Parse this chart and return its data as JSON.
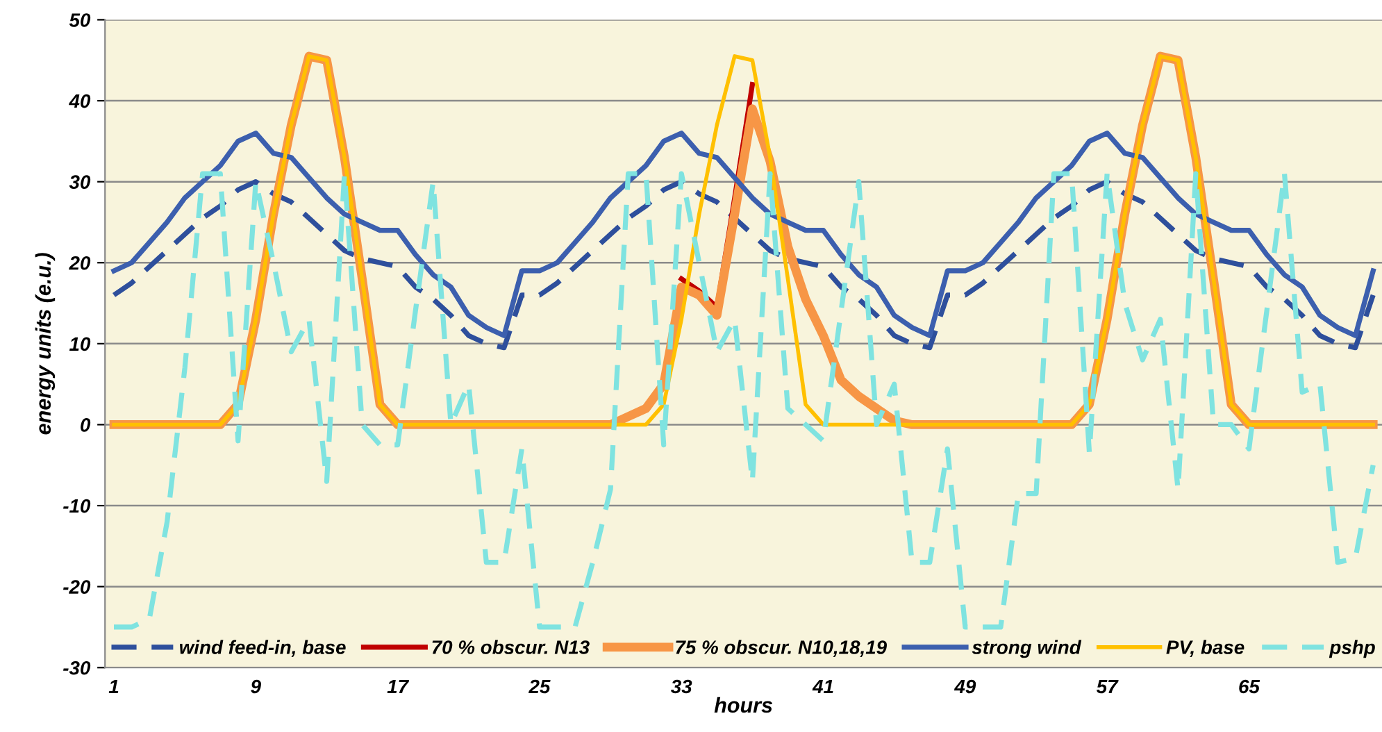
{
  "chart_data": {
    "type": "line",
    "xlabel": "hours",
    "ylabel": "energy units (e.u.)",
    "categories": [
      "1",
      null,
      null,
      null,
      null,
      null,
      null,
      null,
      "9",
      null,
      null,
      null,
      null,
      null,
      null,
      null,
      "17",
      null,
      null,
      null,
      null,
      null,
      null,
      null,
      "25",
      null,
      null,
      null,
      null,
      null,
      null,
      null,
      "33",
      null,
      null,
      null,
      null,
      null,
      null,
      null,
      "41",
      null,
      null,
      null,
      null,
      null,
      null,
      null,
      "49",
      null,
      null,
      null,
      null,
      null,
      null,
      null,
      "57",
      null,
      null,
      null,
      null,
      null,
      null,
      null,
      "65",
      null,
      null,
      null,
      null,
      null,
      null,
      null
    ],
    "ylim": [
      -30,
      50
    ],
    "yticks": [
      -30,
      -20,
      -10,
      0,
      10,
      20,
      30,
      40,
      50
    ],
    "grid": "y",
    "legend": "bottom",
    "series": [
      {
        "name": "wind feed-in, base",
        "color": "#2e4f9c",
        "line_style": "dashed",
        "values": [
          16,
          17.5,
          19.5,
          21.5,
          23.5,
          25.5,
          27,
          29,
          30,
          28.5,
          27.5,
          25.5,
          23.5,
          21.5,
          20.5,
          20,
          19.5,
          17,
          15.5,
          13.5,
          11,
          10,
          9.5,
          16,
          16,
          17.5,
          19.5,
          21.5,
          23.5,
          25.5,
          27,
          29,
          30,
          28.5,
          27.5,
          25.5,
          23.5,
          21.5,
          20.5,
          20,
          19.5,
          17,
          15.5,
          13.5,
          11,
          10,
          9.5,
          16,
          16,
          17.5,
          19.5,
          21.5,
          23.5,
          25.5,
          27,
          29,
          30,
          28.5,
          27.5,
          25.5,
          23.5,
          21.5,
          20.5,
          20,
          19.5,
          17,
          15.5,
          13.5,
          11,
          10,
          9.5,
          16
        ]
      },
      {
        "name": "70 % obscur. N13",
        "color": "#c00000",
        "line_style": "solid",
        "values": [
          null,
          null,
          null,
          null,
          null,
          null,
          null,
          null,
          null,
          null,
          null,
          null,
          null,
          null,
          null,
          null,
          null,
          null,
          null,
          null,
          null,
          null,
          null,
          null,
          null,
          null,
          null,
          null,
          null,
          null,
          null,
          null,
          18,
          16.5,
          14.5,
          28,
          42,
          null,
          null,
          null,
          null,
          null,
          null,
          null,
          null,
          null,
          null,
          null,
          null,
          null,
          null,
          null,
          null,
          null,
          null,
          null,
          null,
          null,
          null,
          null,
          null,
          null,
          null,
          null,
          null,
          null,
          null,
          null,
          null,
          null,
          null,
          null
        ]
      },
      {
        "name": "75 % obscur. N10,18,19",
        "color": "#f79646",
        "line_style": "solid",
        "values": [
          0,
          0,
          0,
          0,
          0,
          0,
          0,
          2.5,
          13,
          26,
          37,
          45.5,
          45,
          33,
          18,
          2.5,
          0,
          0,
          0,
          0,
          0,
          0,
          0,
          0,
          0,
          0,
          0,
          0,
          0,
          1,
          2,
          5,
          17,
          16,
          13.5,
          26,
          39,
          32.5,
          22,
          15.5,
          11,
          5.5,
          3.5,
          2,
          0.5,
          0,
          0,
          0,
          0,
          0,
          0,
          0,
          0,
          0,
          0,
          2.5,
          13,
          26,
          37,
          45.5,
          45,
          33,
          18,
          2.5,
          0,
          0,
          0,
          0,
          0,
          0,
          0,
          0
        ]
      },
      {
        "name": "strong wind",
        "color": "#3c5fae",
        "line_style": "solid",
        "values": [
          19,
          20,
          22.5,
          25,
          28,
          30,
          32,
          35,
          36,
          33.5,
          33,
          30.5,
          28,
          26,
          25,
          24,
          24,
          21,
          18.5,
          17,
          13.5,
          12,
          11,
          19,
          19,
          20,
          22.5,
          25,
          28,
          30,
          32,
          35,
          36,
          33.5,
          33,
          30.5,
          28,
          26,
          25,
          24,
          24,
          21,
          18.5,
          17,
          13.5,
          12,
          11,
          19,
          19,
          20,
          22.5,
          25,
          28,
          30,
          32,
          35,
          36,
          33.5,
          33,
          30.5,
          28,
          26,
          25,
          24,
          24,
          21,
          18.5,
          17,
          13.5,
          12,
          11,
          19
        ]
      },
      {
        "name": "PV, base",
        "color": "#ffc000",
        "line_style": "solid",
        "values": [
          0,
          0,
          0,
          0,
          0,
          0,
          0,
          2.5,
          13,
          26,
          37,
          45.5,
          45,
          33,
          18,
          2.5,
          0,
          0,
          0,
          0,
          0,
          0,
          0,
          0,
          0,
          0,
          0,
          0,
          0,
          0,
          0,
          2.5,
          13,
          26,
          37,
          45.5,
          45,
          33,
          18,
          2.5,
          0,
          0,
          0,
          0,
          0,
          0,
          0,
          0,
          0,
          0,
          0,
          0,
          0,
          0,
          0,
          2.5,
          13,
          26,
          37,
          45.5,
          45,
          33,
          18,
          2.5,
          0,
          0,
          0,
          0,
          0,
          0,
          0,
          0
        ]
      },
      {
        "name": "pshp",
        "color": "#7fe3e0",
        "line_style": "dashed",
        "values": [
          -25,
          -25,
          -24,
          -12,
          7,
          31,
          31,
          -2,
          30,
          20,
          9,
          13,
          -7,
          31,
          0,
          -2.5,
          -2.5,
          14,
          30,
          0,
          5,
          -17,
          -17,
          -3,
          -25,
          -25,
          -25,
          -17,
          -8,
          31,
          31,
          -2.5,
          31,
          20,
          9,
          13,
          -7,
          31,
          2,
          0,
          -2,
          14,
          30,
          0,
          5,
          -17,
          -17,
          -3,
          -25,
          -25,
          -25,
          -8.5,
          -8.5,
          31,
          31,
          -3.5,
          31,
          15,
          8,
          13,
          -8,
          31,
          0,
          0,
          -3,
          14,
          31,
          4,
          5,
          -17,
          -16.5,
          -5
        ]
      }
    ]
  }
}
